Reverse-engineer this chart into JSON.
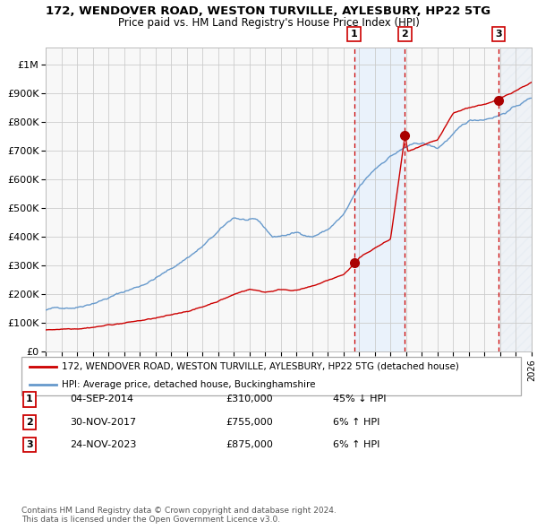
{
  "title1": "172, WENDOVER ROAD, WESTON TURVILLE, AYLESBURY, HP22 5TG",
  "title2": "Price paid vs. HM Land Registry's House Price Index (HPI)",
  "ytick_vals": [
    0,
    100000,
    200000,
    300000,
    400000,
    500000,
    600000,
    700000,
    800000,
    900000,
    1000000
  ],
  "ytick_labels": [
    "£0",
    "£100K",
    "£200K",
    "£300K",
    "£400K",
    "£500K",
    "£600K",
    "£700K",
    "£800K",
    "£900K",
    "£1M"
  ],
  "xlim": [
    1995,
    2026
  ],
  "ylim": [
    0,
    1060000
  ],
  "sale_dates_num": [
    2014.67,
    2017.92,
    2023.9
  ],
  "sale_prices": [
    310000,
    755000,
    875000
  ],
  "sale_labels": [
    "1",
    "2",
    "3"
  ],
  "legend1": "172, WENDOVER ROAD, WESTON TURVILLE, AYLESBURY, HP22 5TG (detached house)",
  "legend2": "HPI: Average price, detached house, Buckinghamshire",
  "table_rows": [
    [
      "1",
      "04-SEP-2014",
      "£310,000",
      "45% ↓ HPI"
    ],
    [
      "2",
      "30-NOV-2017",
      "£755,000",
      "6% ↑ HPI"
    ],
    [
      "3",
      "24-NOV-2023",
      "£875,000",
      "6% ↑ HPI"
    ]
  ],
  "footer": "Contains HM Land Registry data © Crown copyright and database right 2024.\nThis data is licensed under the Open Government Licence v3.0.",
  "hpi_color": "#6699cc",
  "price_color": "#cc0000",
  "bg_color": "#f8f8f8",
  "grid_color": "#cccccc",
  "shade_color": "#ddeeff"
}
